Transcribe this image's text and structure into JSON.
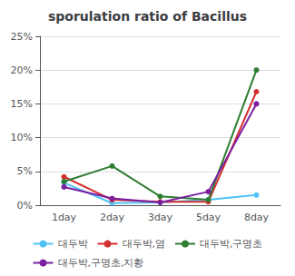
{
  "chart_data": {
    "type": "line",
    "title": "sporulation ratio of Bacillus",
    "categories": [
      "1day",
      "2day",
      "3day",
      "5day",
      "8day"
    ],
    "series": [
      {
        "name": "대두박",
        "color": "#4FC3F7",
        "values": [
          0.033,
          0.003,
          0.004,
          0.008,
          0.015
        ]
      },
      {
        "name": "대두박,염",
        "color": "#D32F2F",
        "values": [
          0.042,
          0.008,
          0.005,
          0.005,
          0.168
        ]
      },
      {
        "name": "대두박,구명초",
        "color": "#2E7D32",
        "values": [
          0.035,
          0.058,
          0.013,
          0.008,
          0.2
        ]
      },
      {
        "name": "대두박,구명초,지황",
        "color": "#7B1FA2",
        "values": [
          0.027,
          0.01,
          0.004,
          0.02,
          0.15
        ]
      }
    ],
    "ylim": [
      0,
      0.25
    ],
    "yticks": [
      {
        "value": 0.0,
        "label": "0%"
      },
      {
        "value": 0.05,
        "label": "5%"
      },
      {
        "value": 0.1,
        "label": "10%"
      },
      {
        "value": 0.15,
        "label": "15%"
      },
      {
        "value": 0.2,
        "label": "20%"
      },
      {
        "value": 0.25,
        "label": "25%"
      }
    ],
    "grid": true,
    "legend": "bottom",
    "marker": "circle"
  }
}
